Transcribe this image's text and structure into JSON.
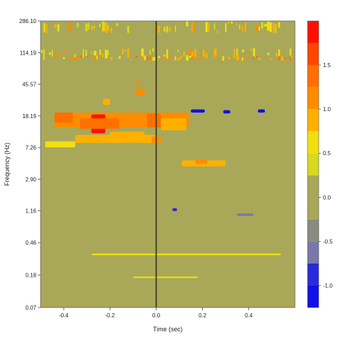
{
  "chart_data": {
    "type": "heatmap",
    "title": "",
    "xlabel": "Time (sec)",
    "ylabel": "Frequency (Hz)",
    "xlim": [
      -0.5,
      0.6
    ],
    "ylim": [
      0.07,
      286.1
    ],
    "y_scale": "log",
    "x_ticks": [
      -0.4,
      -0.2,
      0.0,
      0.2,
      0.4
    ],
    "x_tick_labels": [
      "-0.4",
      "-0.2",
      "0.0",
      "0.2",
      "0.4"
    ],
    "y_ticks": [
      0.07,
      0.18,
      0.46,
      1.16,
      2.9,
      7.26,
      18.19,
      45.57,
      114.19,
      286.1
    ],
    "y_tick_labels": [
      "0.07",
      "0.18",
      "0.46",
      "1.16",
      "2.90",
      "7.26",
      "18.19",
      "45.57",
      "114.19",
      "286.10"
    ],
    "event_marker_x": 0.0,
    "background_value": 0.0,
    "colorbar": {
      "range": [
        -1.25,
        2.0
      ],
      "ticks": [
        -1.0,
        -0.5,
        0.0,
        0.5,
        1.0,
        1.5
      ],
      "tick_labels": [
        "-1.0",
        "-0.5",
        "0.0",
        "0.5",
        "1.0",
        "1.5"
      ],
      "bins": [
        {
          "from": -1.25,
          "to": -1.0,
          "color": "#1010e8"
        },
        {
          "from": -1.0,
          "to": -0.75,
          "color": "#2a2ad8"
        },
        {
          "from": -0.75,
          "to": -0.5,
          "color": "#7878a8"
        },
        {
          "from": -0.5,
          "to": -0.25,
          "color": "#8a8a80"
        },
        {
          "from": -0.25,
          "to": 0.25,
          "color": "#a8a858"
        },
        {
          "from": 0.25,
          "to": 0.5,
          "color": "#d8d820"
        },
        {
          "from": 0.5,
          "to": 0.75,
          "color": "#f0e010"
        },
        {
          "from": 0.75,
          "to": 1.0,
          "color": "#ffb000"
        },
        {
          "from": 1.0,
          "to": 1.25,
          "color": "#ff8c00"
        },
        {
          "from": 1.25,
          "to": 1.5,
          "color": "#ff7000"
        },
        {
          "from": 1.5,
          "to": 1.75,
          "color": "#ff4500"
        },
        {
          "from": 1.75,
          "to": 2.0,
          "color": "#ff1000"
        }
      ]
    },
    "regions": [
      {
        "t0": -0.44,
        "t1": 0.14,
        "f0": 13.0,
        "f1": 20.0,
        "value": 1.0
      },
      {
        "t0": -0.28,
        "t1": -0.22,
        "f0": 11.0,
        "f1": 19.0,
        "value": 1.8
      },
      {
        "t0": -0.33,
        "t1": -0.16,
        "f0": 12.5,
        "f1": 17.0,
        "value": 1.4
      },
      {
        "t0": -0.44,
        "t1": -0.36,
        "f0": 15.0,
        "f1": 20.0,
        "value": 1.25
      },
      {
        "t0": -0.04,
        "t1": 0.02,
        "f0": 13.0,
        "f1": 19.5,
        "value": 1.3
      },
      {
        "t0": 0.02,
        "t1": 0.13,
        "f0": 12.0,
        "f1": 17.0,
        "value": 0.8
      },
      {
        "t0": -0.35,
        "t1": 0.0,
        "f0": 8.3,
        "f1": 10.5,
        "value": 0.9
      },
      {
        "t0": -0.2,
        "t1": -0.05,
        "f0": 9.8,
        "f1": 11.5,
        "value": 0.9
      },
      {
        "t0": -0.48,
        "t1": -0.35,
        "f0": 7.3,
        "f1": 8.7,
        "value": 0.7
      },
      {
        "t0": -0.02,
        "t1": 0.02,
        "f0": 8.2,
        "f1": 10.0,
        "value": 1.0
      },
      {
        "t0": 0.11,
        "t1": 0.3,
        "f0": 4.2,
        "f1": 5.0,
        "value": 0.9
      },
      {
        "t0": 0.17,
        "t1": 0.22,
        "f0": 4.5,
        "f1": 5.2,
        "value": 1.0
      },
      {
        "t0": -0.09,
        "t1": -0.05,
        "f0": 33.0,
        "f1": 40.0,
        "value": 1.0
      },
      {
        "t0": -0.23,
        "t1": -0.2,
        "f0": 25.0,
        "f1": 30.0,
        "value": 0.8
      },
      {
        "t0": -0.09,
        "t1": -0.07,
        "f0": 45.0,
        "f1": 50.0,
        "value": 1.0
      },
      {
        "t0": 0.15,
        "t1": 0.21,
        "f0": 20.0,
        "f1": 22.0,
        "value": -1.1
      },
      {
        "t0": 0.29,
        "t1": 0.32,
        "f0": 19.5,
        "f1": 21.5,
        "value": -1.1
      },
      {
        "t0": 0.44,
        "t1": 0.47,
        "f0": 20.0,
        "f1": 22.0,
        "value": -1.1
      },
      {
        "t0": 0.07,
        "t1": 0.09,
        "f0": 1.15,
        "f1": 1.25,
        "value": -0.9
      },
      {
        "t0": 0.35,
        "t1": 0.42,
        "f0": 1.0,
        "f1": 1.07,
        "value": -0.6
      },
      {
        "t0": -0.28,
        "t1": 0.54,
        "f0": 0.32,
        "f1": 0.335,
        "value": 0.6
      },
      {
        "t0": -0.1,
        "t1": 0.18,
        "f0": 0.165,
        "f1": 0.172,
        "value": 0.6
      },
      {
        "t0": -0.5,
        "t1": 0.6,
        "f0": 95.0,
        "f1": 130.0,
        "value": 0.6,
        "pattern": "streaks"
      },
      {
        "t0": -0.5,
        "t1": 0.6,
        "f0": 200.0,
        "f1": 286.0,
        "value": 0.7,
        "pattern": "streaks"
      },
      {
        "t0": -0.5,
        "t1": 0.6,
        "f0": 90.0,
        "f1": 105.0,
        "value": 1.0,
        "pattern": "streaks"
      }
    ]
  }
}
